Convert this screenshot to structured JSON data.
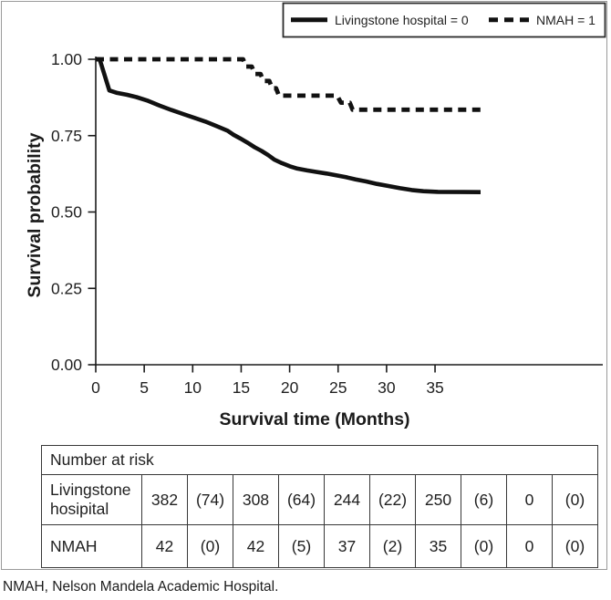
{
  "figure": {
    "footnote": "NMAH, Nelson Mandela Academic Hospital."
  },
  "legend": {
    "position": "top-right",
    "items": [
      {
        "key": "livingstone",
        "label": "Livingstone hospital = 0",
        "style": "solid"
      },
      {
        "key": "nmah",
        "label": "NMAH = 1",
        "style": "dashed"
      }
    ]
  },
  "chart_data": {
    "type": "line",
    "subtype": "kaplan-meier-step",
    "title": "",
    "xlabel": "Survival time (Months)",
    "ylabel": "Survival probability",
    "xlim": [
      0,
      52
    ],
    "ylim": [
      0.0,
      1.0
    ],
    "grid": false,
    "legend_position": "top-right",
    "x_ticks": [
      {
        "v": 0,
        "label": "0"
      },
      {
        "v": 5,
        "label": "5"
      },
      {
        "v": 10,
        "label": "10"
      },
      {
        "v": 15,
        "label": "15"
      },
      {
        "v": 20,
        "label": "20"
      },
      {
        "v": 25,
        "label": "25"
      },
      {
        "v": 30,
        "label": "30"
      },
      {
        "v": 35,
        "label": "35"
      }
    ],
    "y_ticks": [
      {
        "v": 0.0,
        "label": "0.00"
      },
      {
        "v": 0.25,
        "label": "0.25"
      },
      {
        "v": 0.5,
        "label": "0.50"
      },
      {
        "v": 0.75,
        "label": "0.75"
      },
      {
        "v": 1.0,
        "label": "1.00"
      }
    ],
    "series": [
      {
        "name": "Livingstone hospital = 0",
        "key": "livingstone",
        "style": "solid",
        "points": [
          [
            0,
            1.0
          ],
          [
            0.4,
            1.0
          ],
          [
            1.4,
            0.898
          ],
          [
            2.2,
            0.89
          ],
          [
            3.2,
            0.884
          ],
          [
            4.2,
            0.876
          ],
          [
            5.4,
            0.864
          ],
          [
            6.6,
            0.848
          ],
          [
            7.8,
            0.834
          ],
          [
            9.0,
            0.821
          ],
          [
            10.2,
            0.808
          ],
          [
            11.3,
            0.796
          ],
          [
            12.4,
            0.782
          ],
          [
            13.6,
            0.766
          ],
          [
            14.2,
            0.753
          ],
          [
            14.9,
            0.741
          ],
          [
            15.6,
            0.728
          ],
          [
            16.4,
            0.712
          ],
          [
            17.1,
            0.7
          ],
          [
            17.8,
            0.686
          ],
          [
            18.4,
            0.672
          ],
          [
            19.2,
            0.66
          ],
          [
            20.0,
            0.65
          ],
          [
            20.8,
            0.642
          ],
          [
            21.8,
            0.636
          ],
          [
            22.8,
            0.631
          ],
          [
            23.8,
            0.626
          ],
          [
            24.8,
            0.62
          ],
          [
            25.8,
            0.614
          ],
          [
            26.8,
            0.607
          ],
          [
            27.9,
            0.6
          ],
          [
            29.0,
            0.592
          ],
          [
            30.2,
            0.585
          ],
          [
            31.4,
            0.578
          ],
          [
            32.6,
            0.572
          ],
          [
            33.8,
            0.568
          ],
          [
            35.3,
            0.566
          ],
          [
            39.7,
            0.565
          ]
        ]
      },
      {
        "name": "NMAH = 1",
        "key": "nmah",
        "style": "dashed",
        "points": [
          [
            0,
            1.0
          ],
          [
            15.2,
            1.0
          ],
          [
            15.5,
            0.976
          ],
          [
            16.1,
            0.976
          ],
          [
            16.4,
            0.952
          ],
          [
            17.0,
            0.952
          ],
          [
            17.3,
            0.929
          ],
          [
            17.9,
            0.929
          ],
          [
            18.2,
            0.905
          ],
          [
            18.6,
            0.905
          ],
          [
            18.9,
            0.881
          ],
          [
            24.9,
            0.881
          ],
          [
            25.3,
            0.858
          ],
          [
            26.2,
            0.858
          ],
          [
            26.5,
            0.835
          ],
          [
            39.7,
            0.835
          ]
        ]
      }
    ]
  },
  "risk_table": {
    "title": "Number at risk",
    "rows": [
      {
        "label": "Livingstone hosipital",
        "values": [
          "382",
          "(74)",
          "308",
          "(64)",
          "244",
          "(22)",
          "250",
          "(6)",
          "0",
          "(0)"
        ]
      },
      {
        "label": "NMAH",
        "values": [
          "42",
          "(0)",
          "42",
          "(5)",
          "37",
          "(2)",
          "35",
          "(0)",
          "0",
          "(0)"
        ]
      }
    ]
  },
  "colors": {
    "curve": "#111111",
    "frame_border": "#9a9a9a",
    "table_border": "#383838",
    "text": "#1f1f1f"
  }
}
